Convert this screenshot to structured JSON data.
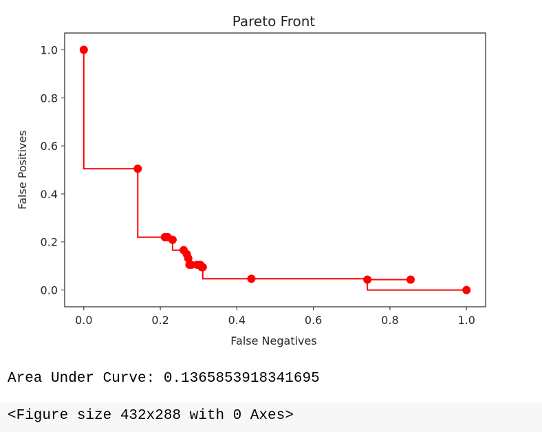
{
  "chart_data": {
    "type": "line",
    "title": "Pareto Front",
    "xlabel": "False Negatives",
    "ylabel": "False Positives",
    "xlim": [
      -0.05,
      1.05
    ],
    "ylim": [
      -0.07,
      1.07
    ],
    "xticks": [
      0.0,
      0.2,
      0.4,
      0.6,
      0.8,
      1.0
    ],
    "xtick_labels": [
      "0.0",
      "0.2",
      "0.4",
      "0.6",
      "0.8",
      "1.0"
    ],
    "yticks": [
      0.0,
      0.2,
      0.4,
      0.6,
      0.8,
      1.0
    ],
    "ytick_labels": [
      "0.0",
      "0.2",
      "0.4",
      "0.6",
      "0.8",
      "1.0"
    ],
    "grid": false,
    "series": [
      {
        "color": "#ff0000",
        "step": "post",
        "x": [
          0.0,
          0.141,
          0.212,
          0.219,
          0.232,
          0.261,
          0.269,
          0.273,
          0.276,
          0.281,
          0.296,
          0.304,
          0.308,
          0.311,
          0.438,
          0.741,
          0.854,
          1.0
        ],
        "y": [
          1.0,
          0.505,
          0.22,
          0.22,
          0.209,
          0.166,
          0.149,
          0.132,
          0.105,
          0.105,
          0.105,
          0.105,
          0.095,
          0.095,
          0.047,
          0.043,
          0.043,
          0.0
        ],
        "line_path": [
          [
            0.0,
            1.0
          ],
          [
            0.0,
            0.505
          ],
          [
            0.141,
            0.505
          ],
          [
            0.141,
            0.22
          ],
          [
            0.232,
            0.22
          ],
          [
            0.232,
            0.166
          ],
          [
            0.261,
            0.166
          ],
          [
            0.261,
            0.149
          ],
          [
            0.269,
            0.149
          ],
          [
            0.269,
            0.132
          ],
          [
            0.273,
            0.132
          ],
          [
            0.273,
            0.105
          ],
          [
            0.304,
            0.105
          ],
          [
            0.304,
            0.095
          ],
          [
            0.311,
            0.095
          ],
          [
            0.311,
            0.047
          ],
          [
            0.741,
            0.047
          ],
          [
            0.741,
            0.043
          ],
          [
            0.854,
            0.043
          ],
          [
            0.741,
            0.043
          ],
          [
            0.741,
            0.0
          ],
          [
            1.0,
            0.0
          ]
        ]
      }
    ]
  },
  "output": {
    "auc_text": "Area Under Curve: 0.1365853918341695",
    "figure_text": "<Figure size 432x288 with 0 Axes>"
  }
}
